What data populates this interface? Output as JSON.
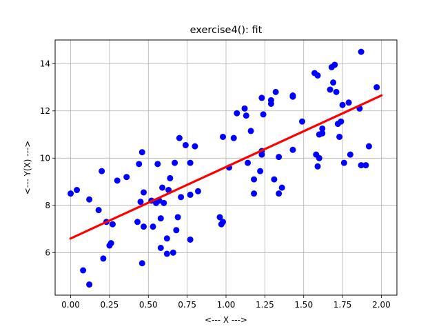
{
  "chart_data": {
    "type": "scatter",
    "title": "exercise4(): fit",
    "xlabel": "<--- X --->",
    "ylabel": "<--- Y(X) --->",
    "xlim": [
      -0.1,
      2.1
    ],
    "ylim": [
      4.2,
      15.0
    ],
    "xticks": [
      0.0,
      0.25,
      0.5,
      0.75,
      1.0,
      1.25,
      1.5,
      1.75,
      2.0
    ],
    "xtick_labels": [
      "0.00",
      "0.25",
      "0.50",
      "0.75",
      "1.00",
      "1.25",
      "1.50",
      "1.75",
      "2.00"
    ],
    "yticks": [
      6,
      8,
      10,
      12,
      14
    ],
    "ytick_labels": [
      "6",
      "8",
      "10",
      "12",
      "14"
    ],
    "grid": true,
    "colors": {
      "points": "#0000ff",
      "fit": "#ff0000",
      "grid": "#b0b0b0"
    },
    "fit_line": {
      "x": [
        0.0,
        2.0
      ],
      "y": [
        6.6,
        12.65
      ]
    },
    "points": {
      "x": [
        0.0,
        0.04,
        0.08,
        0.12,
        0.12,
        0.18,
        0.2,
        0.21,
        0.23,
        0.25,
        0.26,
        0.27,
        0.3,
        0.36,
        0.43,
        0.44,
        0.45,
        0.46,
        0.46,
        0.47,
        0.47,
        0.52,
        0.53,
        0.55,
        0.56,
        0.57,
        0.58,
        0.58,
        0.59,
        0.6,
        0.62,
        0.62,
        0.63,
        0.64,
        0.66,
        0.67,
        0.68,
        0.69,
        0.7,
        0.71,
        0.74,
        0.77,
        0.77,
        0.77,
        0.8,
        0.82,
        0.96,
        0.97,
        0.98,
        0.98,
        1.02,
        1.05,
        1.07,
        1.12,
        1.13,
        1.14,
        1.16,
        1.18,
        1.18,
        1.22,
        1.23,
        1.23,
        1.23,
        1.24,
        1.29,
        1.29,
        1.31,
        1.32,
        1.34,
        1.34,
        1.36,
        1.43,
        1.43,
        1.43,
        1.49,
        1.57,
        1.58,
        1.59,
        1.59,
        1.6,
        1.6,
        1.62,
        1.62,
        1.67,
        1.68,
        1.69,
        1.7,
        1.71,
        1.72,
        1.73,
        1.74,
        1.75,
        1.76,
        1.79,
        1.8,
        1.86,
        1.87,
        1.87,
        1.9,
        1.92,
        1.97
      ],
      "y": [
        8.5,
        8.65,
        5.25,
        4.65,
        8.25,
        7.8,
        9.45,
        5.75,
        7.3,
        6.3,
        6.4,
        7.2,
        9.05,
        9.2,
        7.3,
        9.75,
        8.15,
        10.25,
        5.55,
        8.55,
        7.1,
        8.2,
        7.1,
        8.1,
        9.75,
        8.2,
        7.45,
        6.2,
        8.75,
        8.1,
        5.95,
        6.6,
        8.65,
        9.15,
        6.0,
        9.8,
        6.95,
        7.5,
        10.85,
        8.35,
        10.55,
        9.8,
        8.45,
        6.55,
        10.5,
        8.6,
        7.5,
        7.2,
        7.3,
        10.9,
        9.6,
        10.85,
        11.9,
        12.1,
        11.8,
        9.8,
        11.15,
        9.1,
        8.5,
        9.45,
        10.3,
        10.15,
        12.55,
        11.85,
        12.45,
        12.3,
        9.1,
        12.8,
        10.05,
        8.5,
        8.75,
        12.6,
        12.65,
        10.35,
        11.55,
        13.6,
        10.15,
        9.65,
        13.5,
        10.0,
        11.0,
        11.25,
        11.05,
        12.9,
        13.85,
        13.2,
        13.95,
        12.8,
        11.45,
        10.9,
        11.55,
        12.25,
        9.8,
        12.35,
        10.15,
        12.1,
        14.5,
        9.7,
        9.7,
        10.5,
        13.0
      ]
    }
  }
}
